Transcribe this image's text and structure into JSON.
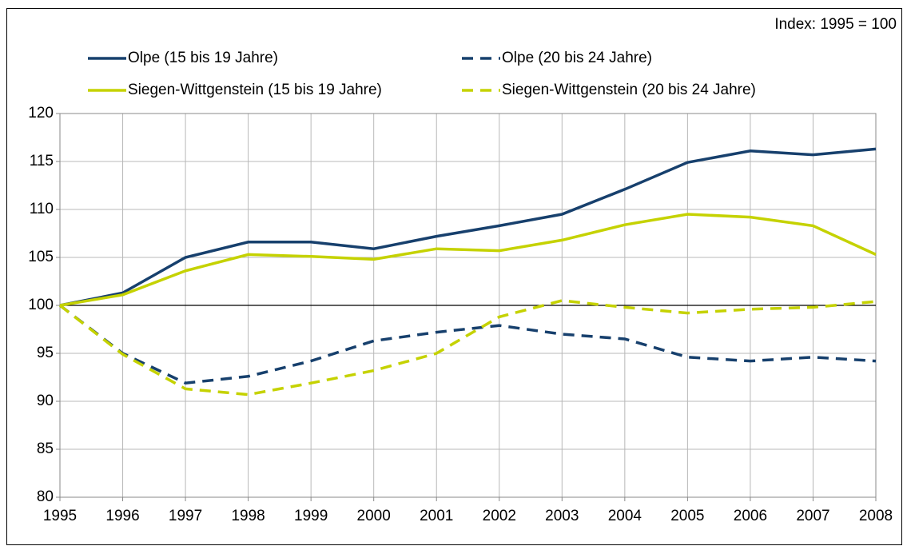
{
  "chart_data": {
    "type": "line",
    "annotation": "Index: 1995 = 100",
    "x": [
      1995,
      1996,
      1997,
      1998,
      1999,
      2000,
      2001,
      2002,
      2003,
      2004,
      2005,
      2006,
      2007,
      2008
    ],
    "xlim": [
      1995,
      2008
    ],
    "xticks": [
      1995,
      1996,
      1997,
      1998,
      1999,
      2000,
      2001,
      2002,
      2003,
      2004,
      2005,
      2006,
      2007,
      2008
    ],
    "ylim": [
      80,
      120
    ],
    "yticks": [
      80,
      85,
      90,
      95,
      100,
      105,
      110,
      115,
      120
    ],
    "grid": true,
    "reference_line": 100,
    "series": [
      {
        "name": "Olpe (15 bis 19 Jahre)",
        "color": "#17406d",
        "dash": false,
        "values": [
          100,
          101.3,
          105,
          106.6,
          106.6,
          105.9,
          107.2,
          108.3,
          109.5,
          112.1,
          114.9,
          116.1,
          115.7,
          116.3
        ]
      },
      {
        "name": "Olpe (20 bis 24 Jahre)",
        "color": "#17406d",
        "dash": true,
        "values": [
          100,
          95,
          91.9,
          92.6,
          94.2,
          96.3,
          97.2,
          97.9,
          97,
          96.5,
          94.6,
          94.2,
          94.6,
          94.2
        ]
      },
      {
        "name": "Siegen-Wittgenstein (15 bis 19 Jahre)",
        "color": "#c5d200",
        "dash": false,
        "values": [
          100,
          101.1,
          103.6,
          105.3,
          105.1,
          104.8,
          105.9,
          105.7,
          106.8,
          108.4,
          109.5,
          109.2,
          108.3,
          105.3
        ]
      },
      {
        "name": "Siegen-Wittgenstein (20 bis 24 Jahre)",
        "color": "#c5d200",
        "dash": true,
        "values": [
          100,
          94.9,
          91.3,
          90.7,
          91.9,
          93.2,
          95,
          98.8,
          100.5,
          99.8,
          99.2,
          99.6,
          99.8,
          100.4
        ]
      }
    ]
  }
}
